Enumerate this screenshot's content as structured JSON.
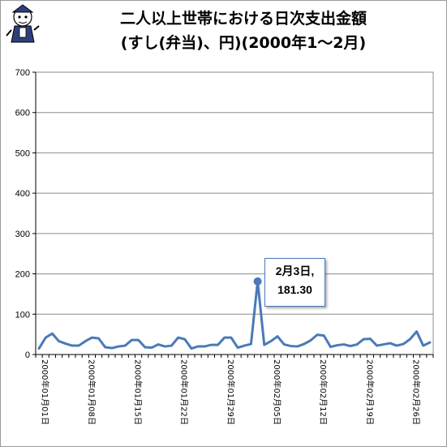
{
  "chart_data": {
    "type": "line",
    "title_line1": "二人以上世帯における日次支出金額",
    "title_line2": "(すし(弁当)、円)(2000年1～2月)",
    "xlabel": "",
    "ylabel": "",
    "ylim": [
      0,
      700
    ],
    "yticks": [
      0,
      100,
      200,
      300,
      400,
      500,
      600,
      700
    ],
    "grid": "horizontal",
    "legend": "none",
    "x": [
      "2000年01月01日",
      "2000年01月02日",
      "2000年01月03日",
      "2000年01月04日",
      "2000年01月05日",
      "2000年01月06日",
      "2000年01月07日",
      "2000年01月08日",
      "2000年01月09日",
      "2000年01月10日",
      "2000年01月11日",
      "2000年01月12日",
      "2000年01月13日",
      "2000年01月14日",
      "2000年01月15日",
      "2000年01月16日",
      "2000年01月17日",
      "2000年01月18日",
      "2000年01月19日",
      "2000年01月20日",
      "2000年01月21日",
      "2000年01月22日",
      "2000年01月23日",
      "2000年01月24日",
      "2000年01月25日",
      "2000年01月26日",
      "2000年01月27日",
      "2000年01月28日",
      "2000年01月29日",
      "2000年01月30日",
      "2000年01月31日",
      "2000年02月01日",
      "2000年02月02日",
      "2000年02月03日",
      "2000年02月04日",
      "2000年02月05日",
      "2000年02月06日",
      "2000年02月07日",
      "2000年02月08日",
      "2000年02月09日",
      "2000年02月10日",
      "2000年02月11日",
      "2000年02月12日",
      "2000年02月13日",
      "2000年02月14日",
      "2000年02月15日",
      "2000年02月16日",
      "2000年02月17日",
      "2000年02月18日",
      "2000年02月19日",
      "2000年02月20日",
      "2000年02月21日",
      "2000年02月22日",
      "2000年02月23日",
      "2000年02月24日",
      "2000年02月25日",
      "2000年02月26日",
      "2000年02月27日",
      "2000年02月28日",
      "2000年02月29日"
    ],
    "xtick_labels": [
      "2000年01月01日",
      "2000年01月08日",
      "2000年01月15日",
      "2000年01月22日",
      "2000年01月29日",
      "2000年02月05日",
      "2000年02月12日",
      "2000年02月19日",
      "2000年02月26日"
    ],
    "series": [
      {
        "values": [
          15,
          42,
          52,
          33,
          27,
          22,
          22,
          33,
          42,
          40,
          18,
          16,
          20,
          22,
          36,
          36,
          18,
          17,
          25,
          20,
          22,
          42,
          38,
          15,
          20,
          20,
          24,
          24,
          42,
          42,
          17,
          22,
          26,
          181.3,
          24,
          33,
          45,
          25,
          21,
          20,
          26,
          35,
          49,
          47,
          19,
          23,
          25,
          21,
          25,
          38,
          39,
          22,
          25,
          28,
          22,
          26,
          38,
          57,
          22,
          30
        ]
      }
    ],
    "annotation": {
      "index": 33,
      "line1": "2月3日,",
      "line2": "181.30"
    },
    "colors": {
      "line": "#4a7ab8",
      "grid": "#8c8c8c"
    }
  }
}
